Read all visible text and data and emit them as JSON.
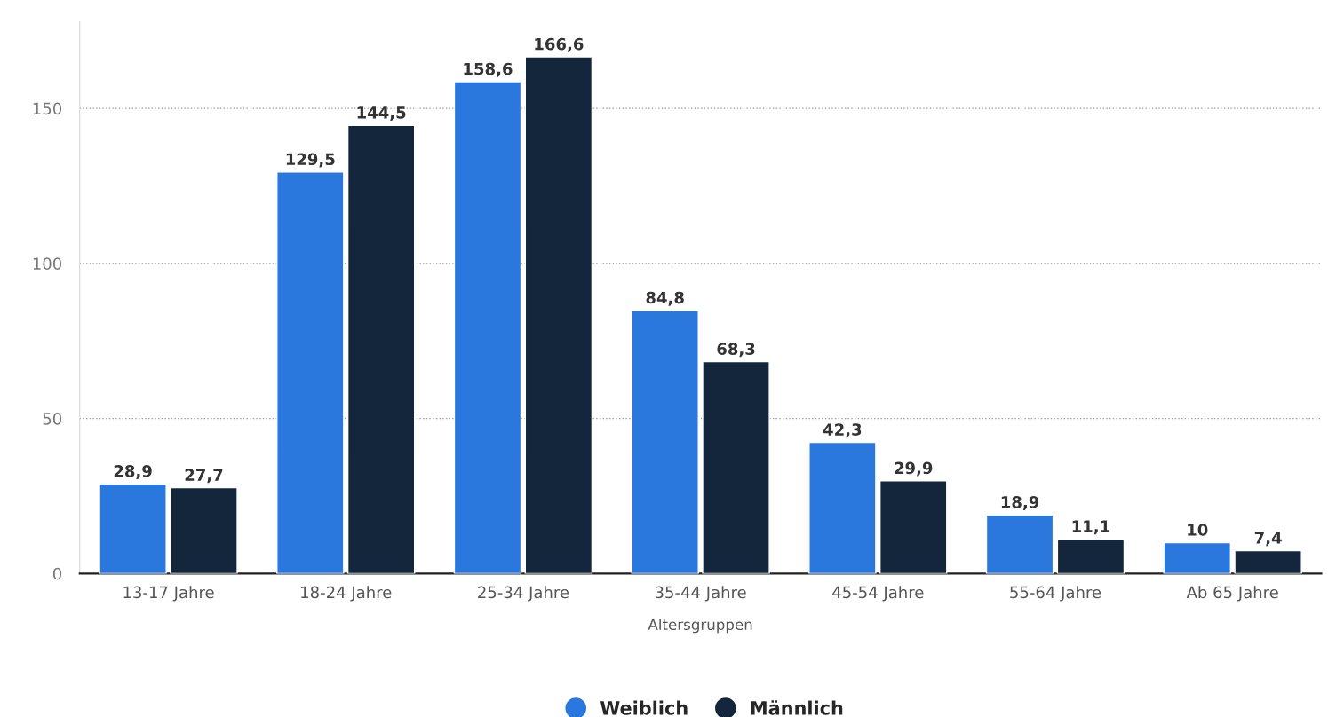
{
  "chart_data": {
    "type": "bar",
    "xlabel": "Altersgruppen",
    "categories": [
      "13-17 Jahre",
      "18-24 Jahre",
      "25-34 Jahre",
      "35-44 Jahre",
      "45-54 Jahre",
      "55-64 Jahre",
      "Ab 65 Jahre"
    ],
    "series": [
      {
        "name": "Weiblich",
        "color": "#2a77de",
        "values": [
          28.9,
          129.5,
          158.6,
          84.8,
          42.3,
          18.9,
          10
        ],
        "value_labels": [
          "28,9",
          "129,5",
          "158,6",
          "84,8",
          "42,3",
          "18,9",
          "10"
        ]
      },
      {
        "name": "Männlich",
        "color": "#13263c",
        "values": [
          27.7,
          144.5,
          166.6,
          68.3,
          29.9,
          11.1,
          7.4
        ],
        "value_labels": [
          "27,7",
          "144,5",
          "166,6",
          "68,3",
          "29,9",
          "11,1",
          "7,4"
        ]
      }
    ],
    "ylim": [
      0,
      178
    ],
    "yticks": [
      0,
      50,
      100,
      150
    ],
    "grid": "y",
    "legend": "bottom"
  }
}
